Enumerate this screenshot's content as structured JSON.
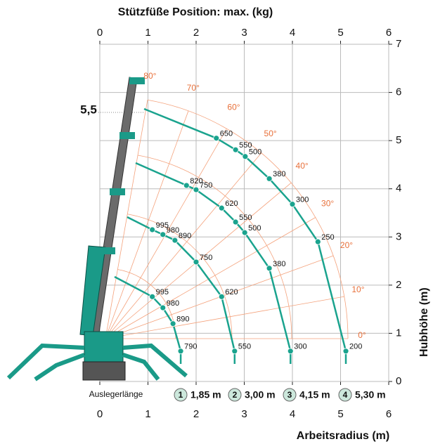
{
  "title": "Stützfüße Position: max. (kg)",
  "x_axis": {
    "label": "Arbeitsradius (m)",
    "ticks": [
      0,
      1,
      2,
      3,
      4,
      5,
      6
    ]
  },
  "y_axis": {
    "label": "Hubhöhe (m)",
    "ticks": [
      0,
      1,
      2,
      3,
      4,
      5,
      6,
      7
    ]
  },
  "marker": "5,5",
  "angles": [
    "0°",
    "10°",
    "20°",
    "30°",
    "40°",
    "50°",
    "60°",
    "70°",
    "80°"
  ],
  "legend": {
    "title": "Auslegerlänge",
    "items": [
      {
        "number": "1",
        "length": "1,85 m"
      },
      {
        "number": "2",
        "length": "3,00 m"
      },
      {
        "number": "3",
        "length": "4,15 m"
      },
      {
        "number": "4",
        "length": "5,30 m"
      }
    ]
  },
  "curves": [
    {
      "points": [
        {
          "x": 1.09,
          "y": 1.76,
          "load": 995
        },
        {
          "x": 1.31,
          "y": 1.53,
          "load": 980
        },
        {
          "x": 1.52,
          "y": 1.2,
          "load": 890
        },
        {
          "x": 1.68,
          "y": 0.63,
          "load": 790
        }
      ]
    },
    {
      "points": [
        {
          "x": 1.09,
          "y": 3.15,
          "load": 995
        },
        {
          "x": 1.31,
          "y": 3.05,
          "load": 980
        },
        {
          "x": 1.56,
          "y": 2.93,
          "load": 890
        },
        {
          "x": 2.0,
          "y": 2.48,
          "load": 750
        },
        {
          "x": 2.53,
          "y": 1.76,
          "load": 620
        },
        {
          "x": 2.8,
          "y": 0.63,
          "load": 550
        }
      ]
    },
    {
      "points": [
        {
          "x": 1.8,
          "y": 4.07,
          "load": 820
        },
        {
          "x": 2.0,
          "y": 3.98,
          "load": 750
        },
        {
          "x": 2.53,
          "y": 3.6,
          "load": 620
        },
        {
          "x": 2.82,
          "y": 3.31,
          "load": 550
        },
        {
          "x": 3.01,
          "y": 3.09,
          "load": 500
        },
        {
          "x": 3.52,
          "y": 2.35,
          "load": 380
        },
        {
          "x": 3.96,
          "y": 0.63,
          "load": 300
        }
      ]
    },
    {
      "points": [
        {
          "x": 2.42,
          "y": 5.05,
          "load": 650
        },
        {
          "x": 2.82,
          "y": 4.81,
          "load": 550
        },
        {
          "x": 3.02,
          "y": 4.67,
          "load": 500
        },
        {
          "x": 3.52,
          "y": 4.21,
          "load": 380
        },
        {
          "x": 4.0,
          "y": 3.68,
          "load": 300
        },
        {
          "x": 4.53,
          "y": 2.9,
          "load": 250
        },
        {
          "x": 5.11,
          "y": 0.63,
          "load": 200
        }
      ]
    }
  ]
}
